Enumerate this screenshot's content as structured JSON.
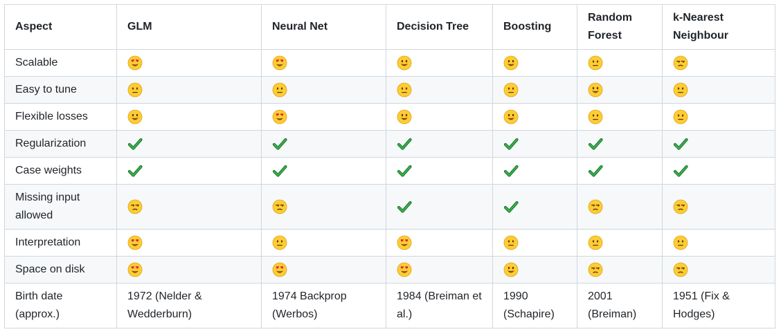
{
  "columns": [
    "Aspect",
    "GLM",
    "Neural Net",
    "Decision Tree",
    "Boosting",
    "Random Forest",
    "k-Nearest Neighbour"
  ],
  "rows": [
    {
      "aspect": "Scalable",
      "cells": [
        {
          "icon": "heart-eyes-icon"
        },
        {
          "icon": "heart-eyes-icon"
        },
        {
          "icon": "smiley-icon"
        },
        {
          "icon": "smiley-icon"
        },
        {
          "icon": "neutral-face-icon"
        },
        {
          "icon": "unamused-face-icon"
        }
      ]
    },
    {
      "aspect": "Easy to tune",
      "cells": [
        {
          "icon": "neutral-face-icon"
        },
        {
          "icon": "neutral-face-icon"
        },
        {
          "icon": "neutral-face-icon"
        },
        {
          "icon": "neutral-face-icon"
        },
        {
          "icon": "smiley-icon"
        },
        {
          "icon": "neutral-face-icon"
        }
      ]
    },
    {
      "aspect": "Flexible losses",
      "cells": [
        {
          "icon": "smiley-icon"
        },
        {
          "icon": "heart-eyes-icon"
        },
        {
          "icon": "smiley-icon"
        },
        {
          "icon": "smiley-icon"
        },
        {
          "icon": "neutral-face-icon"
        },
        {
          "icon": "neutral-face-icon"
        }
      ]
    },
    {
      "aspect": "Regularization",
      "cells": [
        {
          "icon": "checkmark-icon"
        },
        {
          "icon": "checkmark-icon"
        },
        {
          "icon": "checkmark-icon"
        },
        {
          "icon": "checkmark-icon"
        },
        {
          "icon": "checkmark-icon"
        },
        {
          "icon": "checkmark-icon"
        }
      ]
    },
    {
      "aspect": "Case weights",
      "cells": [
        {
          "icon": "checkmark-icon"
        },
        {
          "icon": "checkmark-icon"
        },
        {
          "icon": "checkmark-icon"
        },
        {
          "icon": "checkmark-icon"
        },
        {
          "icon": "checkmark-icon"
        },
        {
          "icon": "checkmark-icon"
        }
      ]
    },
    {
      "aspect": "Missing input allowed",
      "cells": [
        {
          "icon": "unamused-face-icon"
        },
        {
          "icon": "unamused-face-icon"
        },
        {
          "icon": "checkmark-icon"
        },
        {
          "icon": "checkmark-icon"
        },
        {
          "icon": "unamused-face-icon"
        },
        {
          "icon": "unamused-face-icon"
        }
      ]
    },
    {
      "aspect": "Interpretation",
      "cells": [
        {
          "icon": "heart-eyes-icon"
        },
        {
          "icon": "neutral-face-icon"
        },
        {
          "icon": "heart-eyes-icon"
        },
        {
          "icon": "neutral-face-icon"
        },
        {
          "icon": "neutral-face-icon"
        },
        {
          "icon": "neutral-face-icon"
        }
      ]
    },
    {
      "aspect": "Space on disk",
      "cells": [
        {
          "icon": "heart-eyes-icon"
        },
        {
          "icon": "heart-eyes-icon"
        },
        {
          "icon": "heart-eyes-icon"
        },
        {
          "icon": "smiley-icon"
        },
        {
          "icon": "unamused-face-icon"
        },
        {
          "icon": "unamused-face-icon"
        }
      ]
    },
    {
      "aspect": "Birth date (approx.)",
      "cells": [
        {
          "text": "1972 (Nelder & Wedderburn)"
        },
        {
          "text": "1974 Backprop (Werbos)"
        },
        {
          "text": "1984 (Breiman et al.)"
        },
        {
          "text": "1990 (Schapire)"
        },
        {
          "text": "2001 (Breiman)"
        },
        {
          "text": "1951 (Fix & Hodges)"
        }
      ]
    }
  ],
  "colors": {
    "border": "#d0d7de",
    "stripe": "#f6f8fa",
    "text": "#1f2328",
    "check": "#2ea043",
    "face": "#ffcc33"
  }
}
